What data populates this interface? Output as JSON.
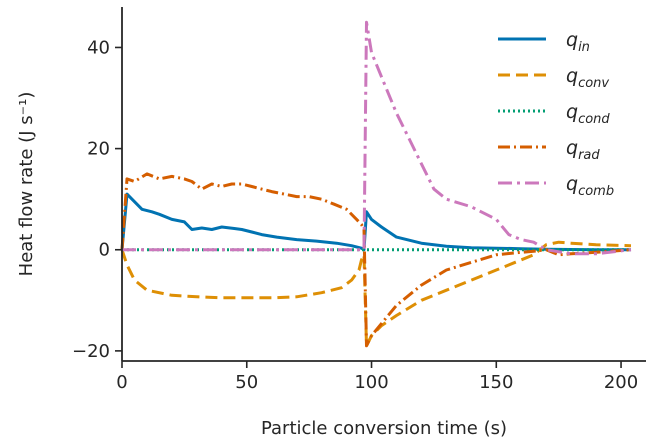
{
  "chart_data": {
    "type": "line",
    "title": "",
    "xlabel": "Particle conversion time (s)",
    "ylabel": "Heat flow rate (J s⁻¹)",
    "xlim": [
      0,
      210
    ],
    "ylim": [
      -22,
      48
    ],
    "xticks": [
      0,
      50,
      100,
      150,
      200
    ],
    "yticks": [
      -20,
      0,
      20,
      40
    ],
    "xtick_labels": [
      "0",
      "50",
      "100",
      "150",
      "200"
    ],
    "ytick_labels": [
      "−20",
      "0",
      "20",
      "40"
    ],
    "grid": false,
    "legend_position": "top-right",
    "series": [
      {
        "name": "q",
        "subscript": "in",
        "color": "#0173b2",
        "dash": "solid",
        "x": [
          0,
          2,
          5,
          8,
          12,
          15,
          20,
          25,
          28,
          32,
          36,
          40,
          45,
          48,
          52,
          56,
          62,
          70,
          78,
          86,
          92,
          96,
          97,
          98,
          100,
          104,
          110,
          120,
          130,
          140,
          150,
          160,
          170,
          180,
          190,
          204
        ],
        "y": [
          0,
          11,
          9.5,
          8,
          7.5,
          7,
          6,
          5.5,
          4,
          4.3,
          4,
          4.5,
          4.2,
          4,
          3.5,
          3,
          2.5,
          2,
          1.7,
          1.3,
          0.8,
          0.3,
          0,
          7.5,
          6,
          4.5,
          2.5,
          1.3,
          0.7,
          0.4,
          0.3,
          0.2,
          0.1,
          0.05,
          0,
          0
        ]
      },
      {
        "name": "q",
        "subscript": "conv",
        "color": "#de8f05",
        "dash": "12,6",
        "x": [
          0,
          2,
          5,
          10,
          20,
          30,
          40,
          50,
          60,
          70,
          80,
          88,
          92,
          95,
          96,
          97,
          98,
          100,
          104,
          110,
          120,
          130,
          140,
          150,
          160,
          165,
          170,
          175,
          180,
          190,
          204
        ],
        "y": [
          0,
          -3,
          -6,
          -8,
          -9,
          -9.3,
          -9.5,
          -9.5,
          -9.5,
          -9.3,
          -8.5,
          -7.5,
          -6,
          -4,
          -2,
          -1,
          -19,
          -17,
          -15,
          -13,
          -10,
          -8,
          -6,
          -4,
          -2,
          -1,
          1,
          1.5,
          1.3,
          1,
          0.8
        ]
      },
      {
        "name": "q",
        "subscript": "cond",
        "color": "#029e73",
        "dash": "2,3",
        "x": [
          0,
          97,
          98,
          204
        ],
        "y": [
          0,
          0,
          0,
          0
        ]
      },
      {
        "name": "q",
        "subscript": "rad",
        "color": "#d55e00",
        "dash": "12,4,2,4",
        "x": [
          0,
          2,
          5,
          10,
          15,
          20,
          25,
          28,
          32,
          36,
          40,
          44,
          48,
          52,
          56,
          60,
          65,
          70,
          75,
          80,
          85,
          90,
          94,
          96,
          97,
          98,
          100,
          105,
          110,
          120,
          130,
          140,
          150,
          160,
          165,
          170,
          175,
          180,
          190,
          204
        ],
        "y": [
          0,
          14,
          13.5,
          15,
          14,
          14.5,
          14,
          13.5,
          12,
          13,
          12.5,
          13,
          13,
          12.5,
          12,
          11.5,
          11,
          10.5,
          10.5,
          10,
          9,
          8,
          6,
          5,
          4,
          -19,
          -17,
          -14,
          -11,
          -7,
          -4,
          -2.5,
          -1,
          -0.5,
          -0.3,
          0,
          -1,
          -0.8,
          -0.5,
          0
        ]
      },
      {
        "name": "q",
        "subscript": "comb",
        "color": "#cc78bc",
        "dash": "14,5,3,5",
        "x": [
          0,
          96,
          97,
          98,
          100,
          105,
          110,
          115,
          120,
          125,
          130,
          140,
          150,
          155,
          160,
          165,
          170,
          180,
          190,
          204
        ],
        "y": [
          0,
          0,
          0,
          45,
          39,
          33,
          27,
          22,
          17,
          12,
          10,
          8.5,
          6,
          3,
          2,
          1.5,
          0,
          -0.8,
          -0.8,
          0
        ]
      }
    ]
  }
}
